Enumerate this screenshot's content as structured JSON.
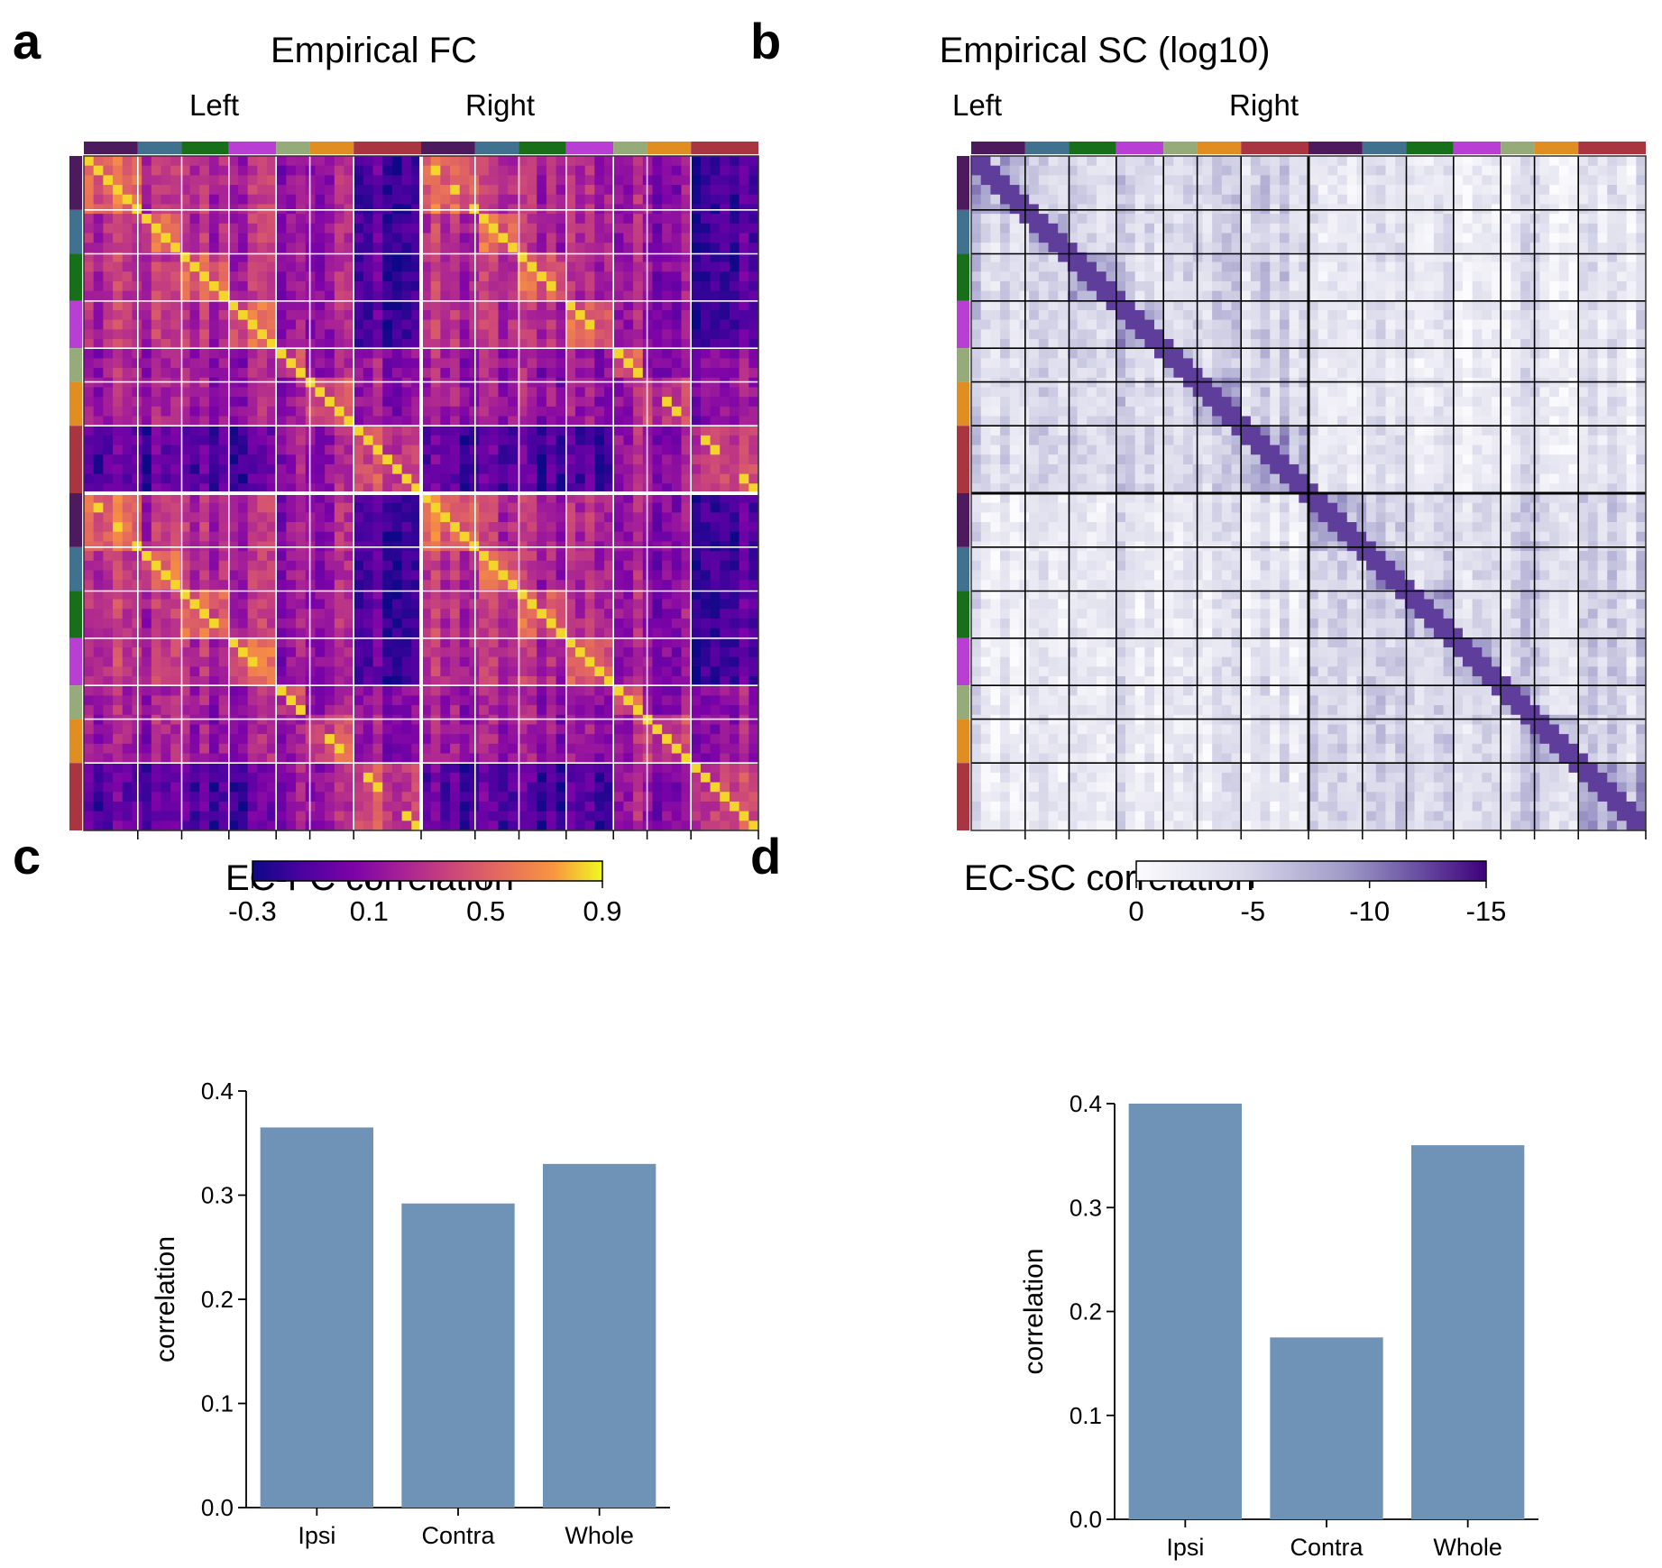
{
  "panels": {
    "a": {
      "letter": "a",
      "title": "Empirical FC",
      "left": "Left",
      "right": "Right"
    },
    "b": {
      "letter": "b",
      "title": "Empirical SC (log10)",
      "left": "Left",
      "right": "Right"
    },
    "c": {
      "letter": "c",
      "title": "EC-FC correlation"
    },
    "d": {
      "letter": "d",
      "title": "EC-SC correlation"
    }
  },
  "network_colors": [
    "#4e1a5e",
    "#40728f",
    "#177019",
    "#b93fd4",
    "#95ab79",
    "#e08e22",
    "#a93541"
  ],
  "chart_data": [
    {
      "type": "heatmap",
      "title": "Empirical FC",
      "top_labels": [
        "Left",
        "Right"
      ],
      "colorbar": {
        "ticks": [
          "-0.3",
          "0.1",
          "0.5",
          "0.9"
        ],
        "range": [
          -0.3,
          0.9
        ],
        "colormap": "plasma"
      },
      "block_fractions": [
        0.16,
        0.13,
        0.14,
        0.14,
        0.1,
        0.13,
        0.2
      ]
    },
    {
      "type": "heatmap",
      "title": "Empirical SC (log10)",
      "top_labels": [
        "Left",
        "Right"
      ],
      "colorbar": {
        "ticks": [
          "0",
          "-5",
          "-10",
          "-15"
        ],
        "range": [
          0,
          -15
        ],
        "colormap": "purples"
      },
      "block_fractions": [
        0.16,
        0.13,
        0.14,
        0.14,
        0.1,
        0.13,
        0.2
      ]
    },
    {
      "type": "bar",
      "title": "EC-FC correlation",
      "categories": [
        "Ipsi",
        "Contra",
        "Whole"
      ],
      "values": [
        0.365,
        0.292,
        0.33
      ],
      "ylabel": "correlation",
      "ylim": [
        0,
        0.4
      ],
      "yticks": [
        "0.0",
        "0.1",
        "0.2",
        "0.3",
        "0.4"
      ],
      "color": "#6f93b7"
    },
    {
      "type": "bar",
      "title": "EC-SC correlation",
      "categories": [
        "Ipsi",
        "Contra",
        "Whole"
      ],
      "values": [
        0.4,
        0.175,
        0.36
      ],
      "ylabel": "correlation",
      "ylim": [
        0,
        0.4
      ],
      "yticks": [
        "0.0",
        "0.1",
        "0.2",
        "0.3",
        "0.4"
      ],
      "color": "#6f93b7"
    }
  ]
}
